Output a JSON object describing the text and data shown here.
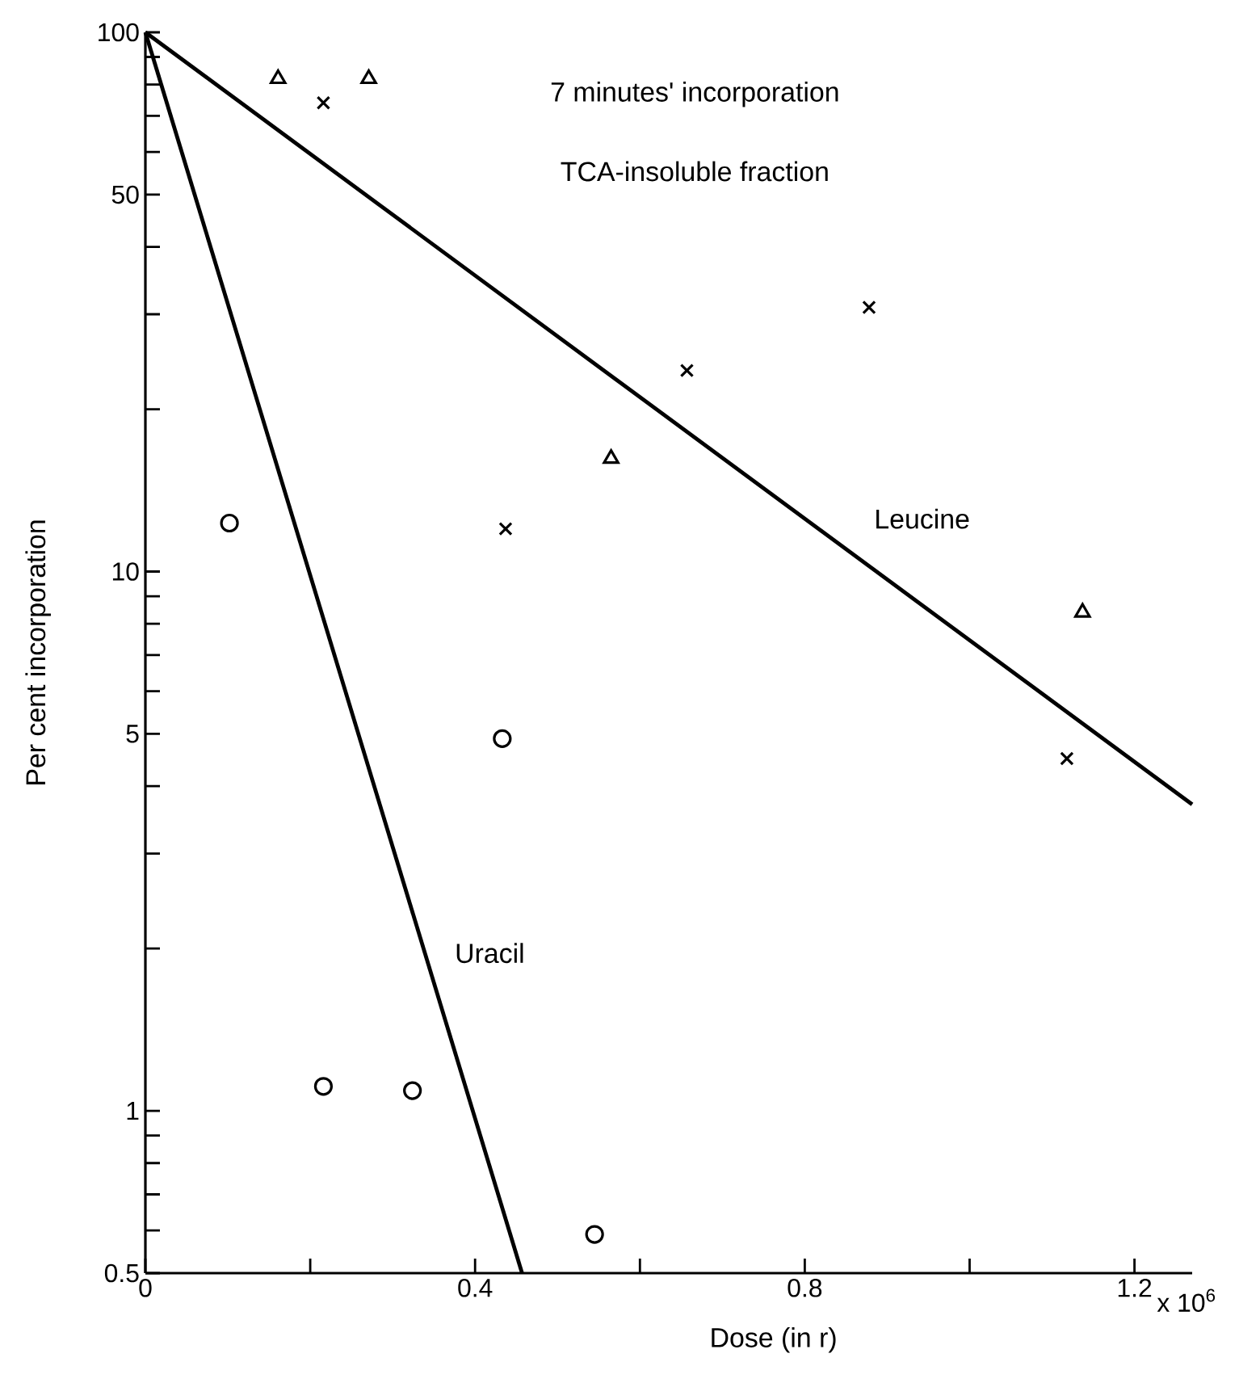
{
  "chart_data": {
    "type": "scatter",
    "title": "7 minutes' incorporation",
    "subtitle": "TCA-insoluble fraction",
    "xlabel": "Dose (in r)",
    "ylabel": "Per cent incorporation",
    "log": "y",
    "xlim": [
      0,
      1.27
    ],
    "ylim": [
      0.5,
      100
    ],
    "xticks": [
      0,
      {
        "value": 0.2,
        "label": null
      },
      0.4,
      {
        "value": 0.6,
        "label": null
      },
      0.8,
      {
        "value": 1.0,
        "label": null
      },
      1.2
    ],
    "yticks": [
      0.5,
      {
        "value": 0.6,
        "label": null
      },
      {
        "value": 0.7,
        "label": null
      },
      {
        "value": 0.8,
        "label": null
      },
      {
        "value": 0.9,
        "label": null
      },
      1,
      {
        "value": 2,
        "label": null
      },
      {
        "value": 3,
        "label": null
      },
      {
        "value": 4,
        "label": null
      },
      5,
      {
        "value": 6,
        "label": null
      },
      {
        "value": 7,
        "label": null
      },
      {
        "value": 8,
        "label": null
      },
      {
        "value": 9,
        "label": null
      },
      10,
      {
        "value": 20,
        "label": null
      },
      {
        "value": 30,
        "label": null
      },
      {
        "value": 40,
        "label": null
      },
      50,
      {
        "value": 60,
        "label": null
      },
      {
        "value": 70,
        "label": null
      },
      {
        "value": 80,
        "label": null
      },
      {
        "value": 90,
        "label": null
      },
      100
    ],
    "annotations": [
      "Leucine",
      "Uracil",
      "x 10$^{6}$"
    ],
    "series": [
      {
        "marker": "triangle",
        "color": "#000000",
        "x": [
          0.161,
          0.271,
          0.565,
          1.137
        ],
        "values": [
          82,
          82,
          16.2,
          8.4
        ]
      },
      {
        "marker": "cross",
        "color": "#000000",
        "x": [
          0.216,
          0.437,
          0.657,
          0.878,
          1.118
        ],
        "values": [
          74,
          12.0,
          23.6,
          30.9,
          4.5
        ]
      },
      {
        "marker": "circle",
        "color": "#000000",
        "x": [
          0.102,
          0.216,
          0.324,
          0.433,
          0.545
        ],
        "values": [
          12.3,
          1.11,
          1.09,
          4.9,
          0.59
        ]
      },
      {
        "type": "line",
        "marker": "none",
        "line_style": "solid",
        "color": "#000000",
        "x": [
          0,
          1.27
        ],
        "values": [
          100,
          3.7
        ]
      },
      {
        "type": "line",
        "marker": "none",
        "line_style": "solid",
        "color": "#000000",
        "x": [
          0,
          0.457
        ],
        "values": [
          100,
          0.5
        ]
      }
    ]
  }
}
